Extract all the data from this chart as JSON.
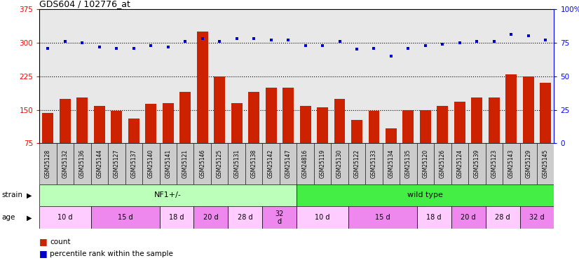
{
  "title": "GDS604 / 102776_at",
  "samples": [
    "GSM25128",
    "GSM25132",
    "GSM25136",
    "GSM25144",
    "GSM25127",
    "GSM25137",
    "GSM25140",
    "GSM25141",
    "GSM25121",
    "GSM25146",
    "GSM25125",
    "GSM25131",
    "GSM25138",
    "GSM25142",
    "GSM25147",
    "GSM24816",
    "GSM25119",
    "GSM25130",
    "GSM25122",
    "GSM25133",
    "GSM25134",
    "GSM25135",
    "GSM25120",
    "GSM25126",
    "GSM25124",
    "GSM25139",
    "GSM25123",
    "GSM25143",
    "GSM25129",
    "GSM25145"
  ],
  "counts": [
    143,
    175,
    178,
    158,
    148,
    130,
    163,
    165,
    190,
    325,
    225,
    165,
    190,
    200,
    200,
    158,
    155,
    175,
    128,
    148,
    108,
    150,
    150,
    158,
    168,
    178,
    178,
    230,
    225,
    210
  ],
  "percentiles": [
    71,
    76,
    75,
    72,
    71,
    71,
    73,
    72,
    76,
    78,
    76,
    78,
    78,
    77,
    77,
    73,
    73,
    76,
    70,
    71,
    65,
    71,
    73,
    74,
    75,
    76,
    76,
    81,
    80,
    77
  ],
  "ylim_left": [
    75,
    375
  ],
  "ylim_right": [
    0,
    100
  ],
  "yticks_left": [
    75,
    150,
    225,
    300,
    375
  ],
  "yticks_right": [
    0,
    25,
    50,
    75,
    100
  ],
  "bar_color": "#cc2200",
  "marker_color": "#0000cc",
  "strain_groups": [
    {
      "label": "NF1+/-",
      "start": 0,
      "end": 15,
      "color": "#bbffbb"
    },
    {
      "label": "wild type",
      "start": 15,
      "end": 30,
      "color": "#44ee44"
    }
  ],
  "age_groups": [
    {
      "label": "10 d",
      "start": 0,
      "end": 3,
      "color": "#ffccff"
    },
    {
      "label": "15 d",
      "start": 3,
      "end": 7,
      "color": "#ee88ee"
    },
    {
      "label": "18 d",
      "start": 7,
      "end": 9,
      "color": "#ffccff"
    },
    {
      "label": "20 d",
      "start": 9,
      "end": 11,
      "color": "#ee88ee"
    },
    {
      "label": "28 d",
      "start": 11,
      "end": 13,
      "color": "#ffccff"
    },
    {
      "label": "32\nd",
      "start": 13,
      "end": 15,
      "color": "#ee88ee"
    },
    {
      "label": "10 d",
      "start": 15,
      "end": 18,
      "color": "#ffccff"
    },
    {
      "label": "15 d",
      "start": 18,
      "end": 22,
      "color": "#ee88ee"
    },
    {
      "label": "18 d",
      "start": 22,
      "end": 24,
      "color": "#ffccff"
    },
    {
      "label": "20 d",
      "start": 24,
      "end": 26,
      "color": "#ee88ee"
    },
    {
      "label": "28 d",
      "start": 26,
      "end": 28,
      "color": "#ffccff"
    },
    {
      "label": "32 d",
      "start": 28,
      "end": 30,
      "color": "#ee88ee"
    }
  ],
  "legend_count_label": "count",
  "legend_pct_label": "percentile rank within the sample",
  "axis_bg": "#e8e8e8",
  "xticklabel_bg": "#cccccc"
}
